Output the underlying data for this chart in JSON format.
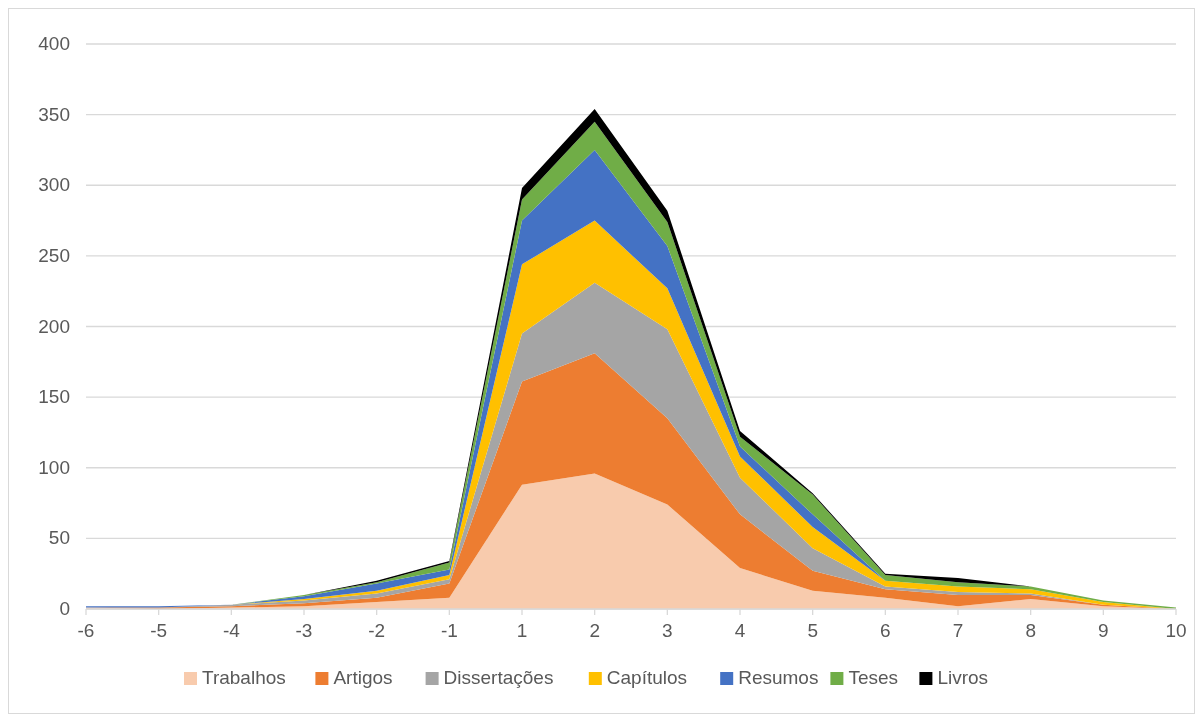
{
  "chart_data": {
    "type": "area",
    "stacked": true,
    "categories": [
      "-6",
      "-5",
      "-4",
      "-3",
      "-2",
      "-1",
      "1",
      "2",
      "3",
      "4",
      "5",
      "6",
      "7",
      "8",
      "9",
      "10"
    ],
    "ylim": [
      0,
      400
    ],
    "yticks": [
      0,
      50,
      100,
      150,
      200,
      250,
      300,
      350,
      400
    ],
    "grid": "y",
    "legend": "bottom",
    "series": [
      {
        "name": "Trabalhos",
        "color": "#f8cbad",
        "values": [
          1,
          0,
          1,
          2,
          5,
          8,
          88,
          96,
          74,
          29,
          13,
          8,
          2,
          7,
          2,
          0
        ]
      },
      {
        "name": "Artigos",
        "color": "#ed7d31",
        "values": [
          0,
          1,
          1,
          2,
          3,
          10,
          73,
          85,
          61,
          38,
          14,
          6,
          8,
          3,
          1,
          0
        ]
      },
      {
        "name": "Dissertações",
        "color": "#a5a5a5",
        "values": [
          0,
          0,
          1,
          2,
          3,
          3,
          34,
          50,
          63,
          26,
          16,
          2,
          2,
          1,
          0,
          0
        ]
      },
      {
        "name": "Capítulos",
        "color": "#ffc000",
        "values": [
          0,
          0,
          0,
          1,
          2,
          3,
          49,
          44,
          29,
          15,
          15,
          4,
          4,
          3,
          2,
          0
        ]
      },
      {
        "name": "Resumos",
        "color": "#4472c4",
        "values": [
          1,
          1,
          0,
          2,
          5,
          4,
          31,
          50,
          30,
          7,
          9,
          0,
          0,
          0,
          0,
          0
        ]
      },
      {
        "name": "Teses",
        "color": "#70ad47",
        "values": [
          0,
          0,
          0,
          1,
          1,
          5,
          15,
          20,
          17,
          7,
          14,
          4,
          3,
          2,
          1,
          1
        ]
      },
      {
        "name": "Livros",
        "color": "#000000",
        "values": [
          0,
          0,
          0,
          0,
          1,
          1,
          8,
          9,
          8,
          4,
          1,
          1,
          3,
          0,
          0,
          0
        ]
      }
    ]
  }
}
